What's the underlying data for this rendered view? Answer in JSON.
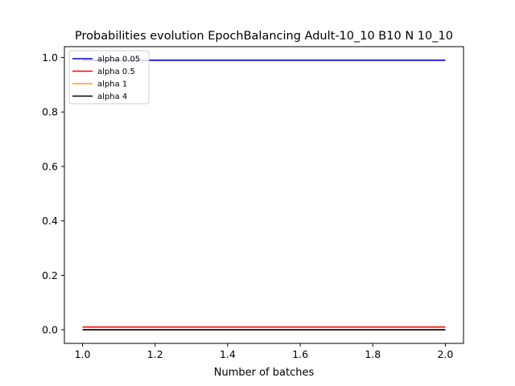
{
  "chart_data": {
    "type": "line",
    "title": "Probabilities evolution EpochBalancing Adult-10_10 B10 N 10_10",
    "xlabel": "Number of batches",
    "ylabel": "",
    "xlim": [
      0.95,
      2.05
    ],
    "ylim": [
      -0.05,
      1.04
    ],
    "xticks": [
      1.0,
      1.2,
      1.4,
      1.6,
      1.8,
      2.0
    ],
    "xtick_labels": [
      "1.0",
      "1.2",
      "1.4",
      "1.6",
      "1.8",
      "2.0"
    ],
    "yticks": [
      0.0,
      0.2,
      0.4,
      0.6,
      0.8,
      1.0
    ],
    "ytick_labels": [
      "0.0",
      "0.2",
      "0.4",
      "0.6",
      "0.8",
      "1.0"
    ],
    "grid": false,
    "legend_position": "top-left",
    "series": [
      {
        "name": "alpha 0.05",
        "color": "#0000cc",
        "x": [
          1.0,
          2.0
        ],
        "y": [
          0.99,
          0.99
        ]
      },
      {
        "name": "alpha 0.5",
        "color": "#ff0000",
        "x": [
          1.0,
          2.0
        ],
        "y": [
          0.01,
          0.01
        ]
      },
      {
        "name": "alpha 1",
        "color": "#ffa500",
        "x": [
          1.0,
          2.0
        ],
        "y": [
          0.0,
          0.0
        ]
      },
      {
        "name": "alpha 4",
        "color": "#000000",
        "x": [
          1.0,
          2.0
        ],
        "y": [
          0.0,
          0.0
        ]
      }
    ]
  }
}
